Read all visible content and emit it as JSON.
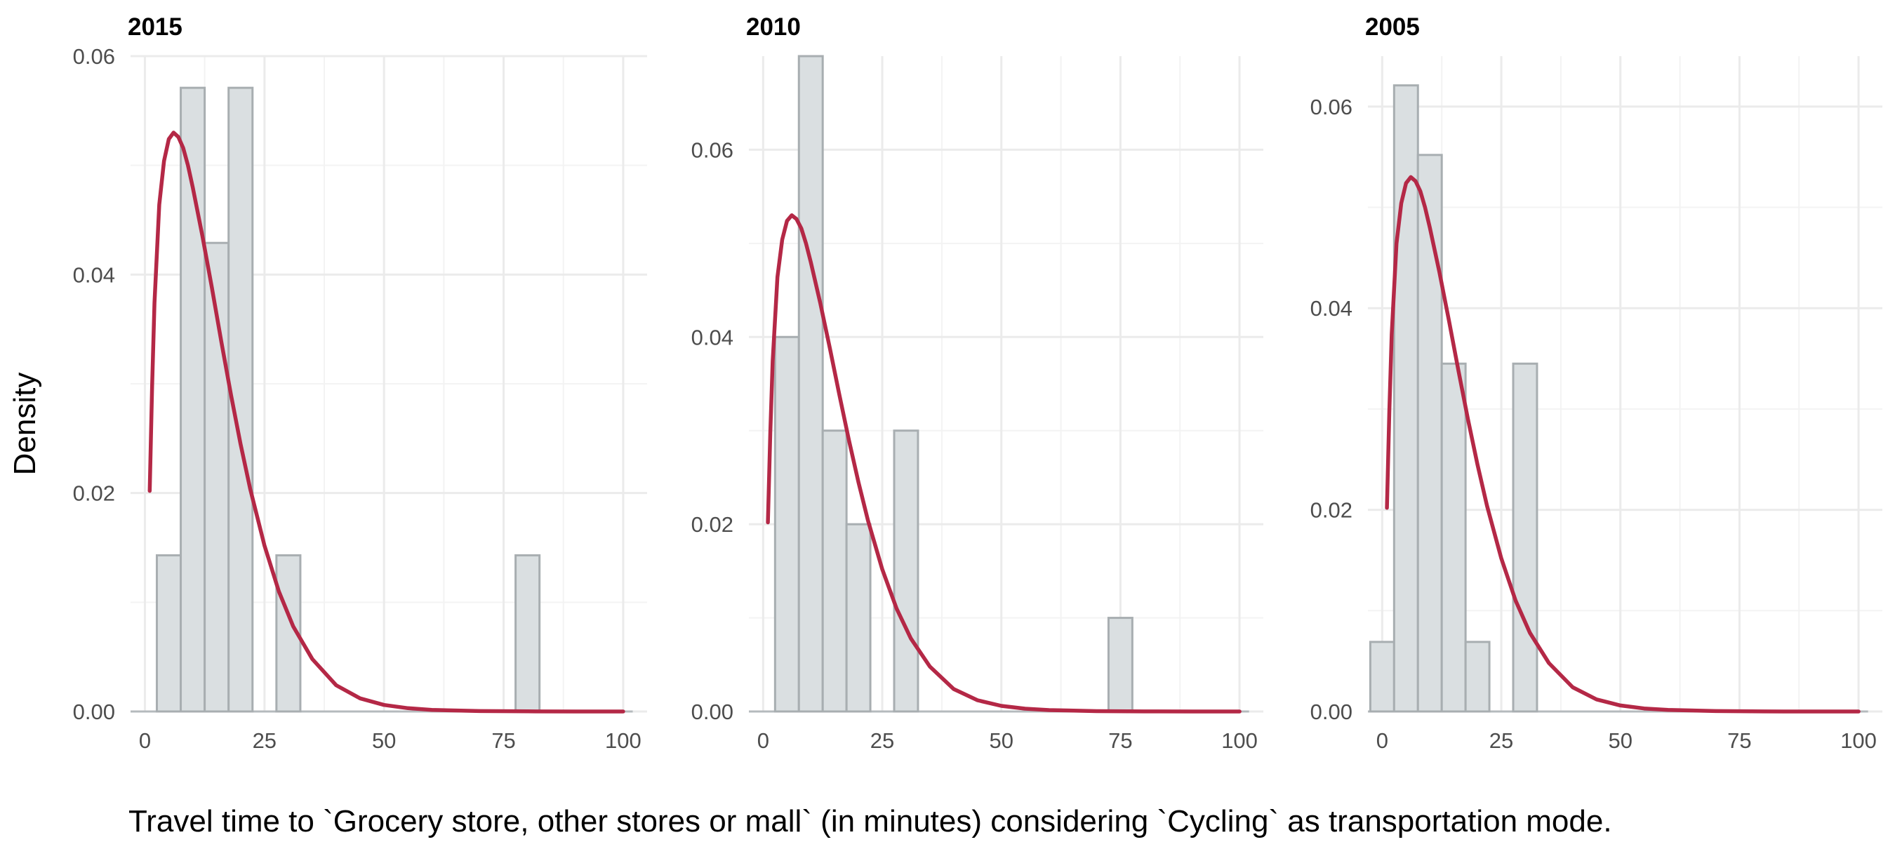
{
  "figure": {
    "ylabel": "Density",
    "xlabel": "Travel time to `Grocery store, other stores or mall` (in minutes) considering `Cycling` as transportation mode.",
    "colors": {
      "bar_fill": "#dadfe1",
      "bar_stroke": "#a8aeb1",
      "density_line": "#b42846",
      "grid": "#ebebeb"
    }
  },
  "chart_data": [
    {
      "type": "bar",
      "title": "2015",
      "xlabel": "Travel time to `Grocery store, other stores or mall` (in minutes) considering `Cycling` as transportation mode.",
      "ylabel": "Density",
      "xlim": [
        -3,
        105
      ],
      "ylim": [
        0,
        0.06
      ],
      "x_ticks": [
        0,
        25,
        50,
        75,
        100
      ],
      "x_tick_labels": [
        "0",
        "25",
        "50",
        "75",
        "100"
      ],
      "y_ticks": [
        0,
        0.02,
        0.04,
        0.06
      ],
      "y_tick_labels": [
        "0.00",
        "0.02",
        "0.04",
        "0.06"
      ],
      "bin_width": 5,
      "bin_centers": [
        5,
        10,
        15,
        20,
        25,
        30,
        35,
        40,
        45,
        50,
        55,
        60,
        65,
        70,
        75,
        80
      ],
      "values": [
        0.0143,
        0.0571,
        0.0429,
        0.0571,
        0,
        0.0143,
        0,
        0,
        0,
        0,
        0,
        0,
        0,
        0,
        0,
        0.0143
      ],
      "density_curve": {
        "x": [
          1,
          1.5,
          2,
          3,
          4,
          5,
          6,
          7,
          8,
          9,
          10,
          12,
          14,
          16,
          18,
          20,
          22,
          25,
          28,
          31,
          35,
          40,
          45,
          50,
          55,
          60,
          70,
          80,
          90,
          100
        ],
        "y": [
          0.0202,
          0.0297,
          0.0374,
          0.0464,
          0.0504,
          0.0524,
          0.053,
          0.0526,
          0.0516,
          0.05,
          0.048,
          0.0436,
          0.0388,
          0.0338,
          0.029,
          0.0245,
          0.0204,
          0.0152,
          0.011,
          0.0078,
          0.0048,
          0.0024,
          0.0012,
          0.0006,
          0.0003,
          0.00015,
          4e-05,
          1e-05,
          0,
          0
        ]
      },
      "grid": true
    },
    {
      "type": "bar",
      "title": "2010",
      "xlabel": "Travel time to `Grocery store, other stores or mall` (in minutes) considering `Cycling` as transportation mode.",
      "ylabel": "Density",
      "xlim": [
        -3,
        105
      ],
      "ylim": [
        0,
        0.07
      ],
      "x_ticks": [
        0,
        25,
        50,
        75,
        100
      ],
      "x_tick_labels": [
        "0",
        "25",
        "50",
        "75",
        "100"
      ],
      "y_ticks": [
        0,
        0.02,
        0.04,
        0.06
      ],
      "y_tick_labels": [
        "0.00",
        "0.02",
        "0.04",
        "0.06"
      ],
      "bin_width": 5,
      "bin_centers": [
        5,
        10,
        15,
        20,
        25,
        30,
        35,
        40,
        45,
        50,
        55,
        60,
        65,
        70,
        75
      ],
      "values": [
        0.04,
        0.07,
        0.03,
        0.02,
        0,
        0.03,
        0,
        0,
        0,
        0,
        0,
        0,
        0,
        0,
        0.01
      ],
      "density_curve": {
        "x": [
          1,
          1.5,
          2,
          3,
          4,
          5,
          6,
          7,
          8,
          9,
          10,
          12,
          14,
          16,
          18,
          20,
          22,
          25,
          28,
          31,
          35,
          40,
          45,
          50,
          55,
          60,
          70,
          80,
          90,
          100
        ],
        "y": [
          0.0202,
          0.0297,
          0.0374,
          0.0464,
          0.0504,
          0.0524,
          0.053,
          0.0526,
          0.0516,
          0.05,
          0.048,
          0.0436,
          0.0388,
          0.0338,
          0.029,
          0.0245,
          0.0204,
          0.0152,
          0.011,
          0.0078,
          0.0048,
          0.0024,
          0.0012,
          0.0006,
          0.0003,
          0.00015,
          4e-05,
          1e-05,
          0,
          0
        ]
      },
      "grid": true
    },
    {
      "type": "bar",
      "title": "2005",
      "xlabel": "Travel time to `Grocery store, other stores or mall` (in minutes) considering `Cycling` as transportation mode.",
      "ylabel": "Density",
      "xlim": [
        -3,
        105
      ],
      "ylim": [
        0,
        0.065
      ],
      "x_ticks": [
        0,
        25,
        50,
        75,
        100
      ],
      "x_tick_labels": [
        "0",
        "25",
        "50",
        "75",
        "100"
      ],
      "y_ticks": [
        0,
        0.02,
        0.04,
        0.06
      ],
      "y_tick_labels": [
        "0.00",
        "0.02",
        "0.04",
        "0.06"
      ],
      "bin_width": 5,
      "bin_centers": [
        0,
        5,
        10,
        15,
        20,
        25,
        30
      ],
      "values": [
        0.0069,
        0.0621,
        0.0552,
        0.0345,
        0.0069,
        0,
        0.0345
      ],
      "density_curve": {
        "x": [
          1,
          1.5,
          2,
          3,
          4,
          5,
          6,
          7,
          8,
          9,
          10,
          12,
          14,
          16,
          18,
          20,
          22,
          25,
          28,
          31,
          35,
          40,
          45,
          50,
          55,
          60,
          70,
          80,
          90,
          100
        ],
        "y": [
          0.0202,
          0.0297,
          0.0374,
          0.0464,
          0.0504,
          0.0524,
          0.053,
          0.0526,
          0.0516,
          0.05,
          0.048,
          0.0436,
          0.0388,
          0.0338,
          0.029,
          0.0245,
          0.0204,
          0.0152,
          0.011,
          0.0078,
          0.0048,
          0.0024,
          0.0012,
          0.0006,
          0.0003,
          0.00015,
          4e-05,
          1e-05,
          0,
          0
        ]
      },
      "grid": true
    }
  ]
}
